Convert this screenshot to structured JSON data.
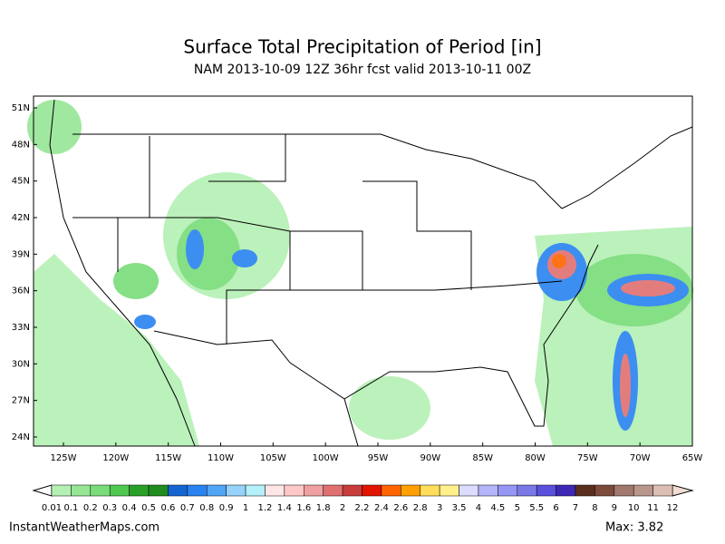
{
  "header": {
    "title": "Surface Total Precipitation of Period [in]",
    "subtitle": "NAM 2013-10-09 12Z 36hr fcst valid 2013-10-11 00Z"
  },
  "map": {
    "lat_labels": [
      "51N",
      "48N",
      "45N",
      "42N",
      "39N",
      "36N",
      "33N",
      "30N",
      "27N",
      "24N"
    ],
    "lon_labels": [
      "125W",
      "120W",
      "115W",
      "110W",
      "105W",
      "100W",
      "95W",
      "90W",
      "85W",
      "80W",
      "75W",
      "70W",
      "65W"
    ]
  },
  "colorbar": {
    "labels": [
      "0.01",
      "0.1",
      "0.2",
      "0.3",
      "0.4",
      "0.5",
      "0.6",
      "0.7",
      "0.8",
      "0.9",
      "1",
      "1.2",
      "1.4",
      "1.6",
      "1.8",
      "2",
      "2.2",
      "2.4",
      "2.6",
      "2.8",
      "3",
      "3.5",
      "4",
      "4.5",
      "5",
      "5.5",
      "6",
      "7",
      "8",
      "9",
      "10",
      "11",
      "12"
    ],
    "colors": [
      "#b4f0b4",
      "#96e696",
      "#78dc78",
      "#50c850",
      "#28a028",
      "#1e8c1e",
      "#1464d2",
      "#2882f0",
      "#50a5f5",
      "#96d2fa",
      "#b4f0fa",
      "#ffe6e6",
      "#ffc8c8",
      "#f0a0a0",
      "#e07070",
      "#c83c3c",
      "#e11400",
      "#ff6400",
      "#ffa000",
      "#ffdc5a",
      "#fff08c",
      "#dcdcff",
      "#b4b4fa",
      "#9696f5",
      "#7878e6",
      "#5a50dc",
      "#3c28b4",
      "#5a2d1e",
      "#7d4b3c",
      "#a0786e",
      "#b9968c",
      "#dcbeb4"
    ],
    "end_colors": [
      "#ffffff",
      "#f0dcd2"
    ]
  },
  "footer": {
    "source": "InstantWeatherMaps.com",
    "max": "Max:  3.82"
  }
}
